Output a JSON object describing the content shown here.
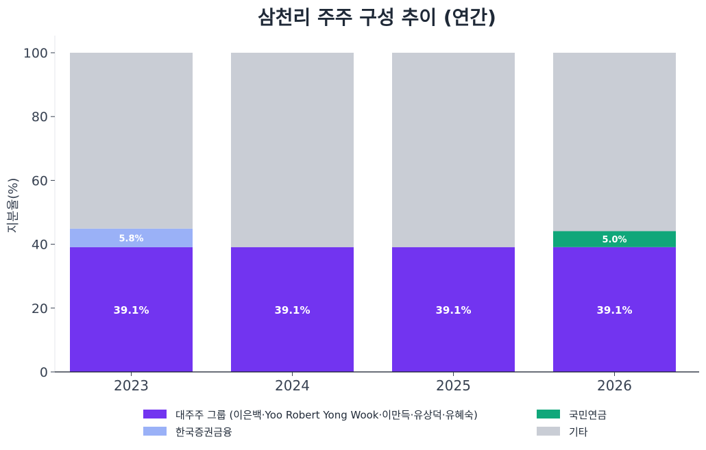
{
  "chart_data": {
    "type": "bar",
    "stacked": true,
    "title": "삼천리 주주 구성 추이 (연간)",
    "ylabel": "지분율(%)",
    "xlabel": "",
    "ylim": [
      0,
      100
    ],
    "yticks": [
      0,
      20,
      40,
      60,
      80,
      100
    ],
    "categories": [
      "2023",
      "2024",
      "2025",
      "2026"
    ],
    "grid": false,
    "legend_position": "bottom",
    "series": [
      {
        "name": "대주주 그룹 (이은백·Yoo Robert Yong Wook·이만득·유상덕·유혜숙)",
        "color": "#7234f0",
        "values": [
          39.1,
          39.1,
          39.1,
          39.1
        ],
        "labels": [
          "39.1%",
          "39.1%",
          "39.1%",
          "39.1%"
        ]
      },
      {
        "name": "한국증권금융",
        "color": "#9ab1f7",
        "values": [
          5.8,
          0,
          0,
          0
        ],
        "labels": [
          "5.8%",
          "",
          "",
          ""
        ]
      },
      {
        "name": "국민연금",
        "color": "#10a77a",
        "values": [
          0,
          0,
          0,
          5.0
        ],
        "labels": [
          "",
          "",
          "",
          "5.0%"
        ]
      },
      {
        "name": "기타",
        "color": "#c9cdd5",
        "values": [
          55.1,
          60.9,
          60.9,
          55.9
        ],
        "labels": [
          "",
          "",
          "",
          ""
        ]
      }
    ]
  }
}
